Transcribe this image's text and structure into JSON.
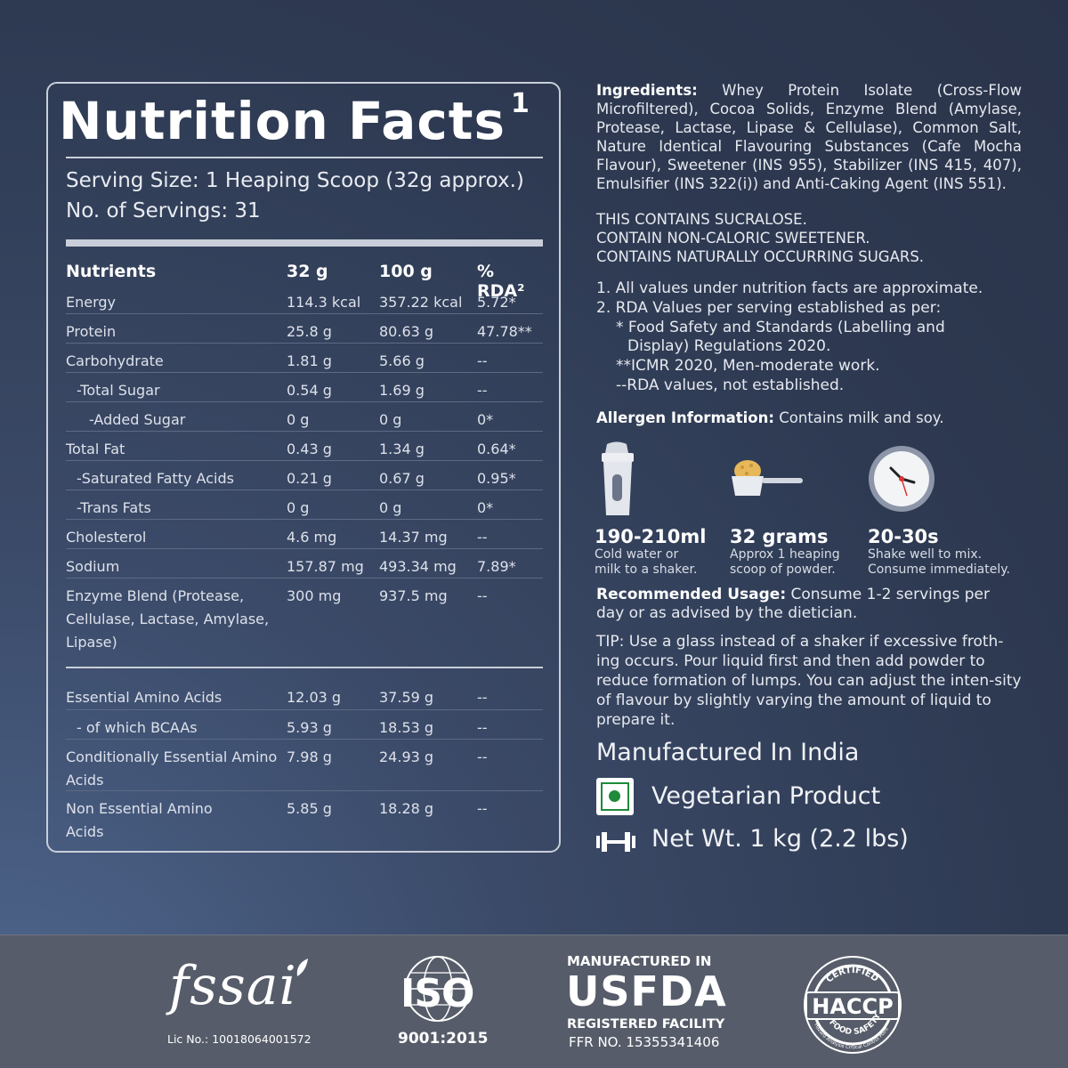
{
  "nutrition": {
    "title": "Nutrition Facts",
    "title_sup": "1",
    "serving_size": "Serving Size: 1 Heaping Scoop (32g approx.)",
    "servings": "No. of Servings: 31",
    "headers": [
      "Nutrients",
      "32 g",
      "100 g",
      "% RDA²"
    ],
    "rows": [
      [
        "Energy",
        "114.3 kcal",
        "357.22 kcal",
        "5.72*"
      ],
      [
        "Protein",
        "25.8 g",
        "80.63 g",
        "47.78**"
      ],
      [
        "Carbohydrate",
        "1.81 g",
        "5.66 g",
        "--"
      ],
      [
        "-Total Sugar",
        "0.54 g",
        "1.69 g",
        "--"
      ],
      [
        "-Added Sugar",
        "0 g",
        "0 g",
        "0*"
      ],
      [
        "Total Fat",
        "0.43 g",
        "1.34 g",
        "0.64*"
      ],
      [
        "-Saturated Fatty Acids",
        "0.21 g",
        "0.67 g",
        "0.95*"
      ],
      [
        "-Trans Fats",
        "0 g",
        "0 g",
        "0*"
      ],
      [
        "Cholesterol",
        "4.6 mg",
        "14.37 mg",
        "--"
      ],
      [
        "Sodium",
        "157.87 mg",
        "493.34 mg",
        "7.89*"
      ],
      [
        "Enzyme Blend (Protease, Cellulase, Lactase, Amylase, Lipase)",
        "300 mg",
        "937.5 mg",
        "--"
      ]
    ],
    "amino_rows": [
      [
        "Essential Amino Acids",
        "12.03 g",
        "37.59 g",
        "--"
      ],
      [
        "- of which BCAAs",
        "5.93 g",
        "18.53 g",
        "--"
      ],
      [
        "Conditionally Essential Amino Acids",
        "7.98 g",
        "24.93 g",
        "--"
      ],
      [
        "Non Essential Amino Acids",
        "5.85 g",
        "18.28 g",
        "--"
      ]
    ]
  },
  "ingredients": {
    "label": "Ingredients:",
    "text": "Whey Protein Isolate (Cross-Flow Microfiltered), Cocoa Solids, Enzyme Blend (Amylase, Protease, Lactase, Lipase & Cellulase), Common Salt, Nature Identical Flavouring Substances (Cafe Mocha Flavour), Sweetener (INS 955), Stabilizer (INS 415, 407), Emulsifier (INS 322(i)) and Anti-Caking Agent (INS 551)."
  },
  "warnings": [
    "THIS CONTAINS SUCRALOSE.",
    "CONTAIN NON-CALORIC SWEETENER.",
    "CONTAINS NATURALLY OCCURRING SUGARS."
  ],
  "notes": {
    "n1": "1.  All values under nutrition facts  are approximate.",
    "n2": "2.  RDA Values per serving established as per:",
    "n2a": "* Food Safety and Standards (Labelling and",
    "n2b": "Display) Regulations 2020.",
    "n2c": "**ICMR 2020, Men-moderate work.",
    "n2d": "--RDA values, not established."
  },
  "allergen": {
    "label": "Allergen Information:",
    "text": "Contains milk and soy."
  },
  "steps": [
    {
      "icon": "shaker-icon",
      "big": "190-210ml",
      "line1": "Cold water or",
      "line2": "milk to a shaker."
    },
    {
      "icon": "scoop-icon",
      "big": "32 grams",
      "line1": "Approx 1 heaping",
      "line2": "scoop of powder."
    },
    {
      "icon": "clock-icon",
      "big": "20-30s",
      "line1": "Shake well to mix.",
      "line2": "Consume immediately."
    }
  ],
  "usage": {
    "label": "Recommended Usage:",
    "text": "Consume 1-2 servings per day or as advised by the dietician."
  },
  "tip": "TIP: Use a glass instead of a shaker if excessive froth-ing occurs. Pour liquid first and then add powder to reduce formation of lumps. You can adjust the inten-sity of flavour by slightly varying the amount of liquid to prepare it.",
  "manufactured": "Manufactured In India",
  "vegetarian": "Vegetarian Product",
  "net_wt": "Net Wt. 1 kg (2.2 lbs)",
  "footer": {
    "fssai_logo": "fssai",
    "fssai_lic": "Lic No.: 10018064001572",
    "iso_logo": "ISO",
    "iso_number": "9001:2015",
    "usfda_top": "MANUFACTURED IN",
    "usfda_big": "USFDA",
    "usfda_reg": "REGISTERED FACILITY",
    "usfda_ffr": "FFR NO. 15355341406",
    "haccp_certified": "CERTIFIED",
    "haccp_main": "HACCP",
    "haccp_safety": "FOOD SAFETY",
    "haccp_sub": "Hazard Analysis Critical Control Point"
  }
}
